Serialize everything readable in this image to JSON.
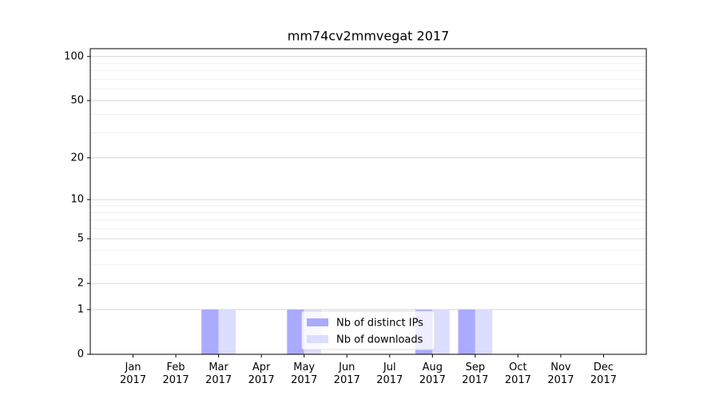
{
  "chart_data": {
    "type": "bar",
    "title": "mm74cv2mmvegat 2017",
    "categories": [
      "Jan 2017",
      "Feb 2017",
      "Mar 2017",
      "Apr 2017",
      "May 2017",
      "Jun 2017",
      "Jul 2017",
      "Aug 2017",
      "Sep 2017",
      "Oct 2017",
      "Nov 2017",
      "Dec 2017"
    ],
    "series": [
      {
        "name": "Nb of distinct IPs",
        "color": "#aaaaff",
        "values": [
          0,
          0,
          1,
          0,
          1,
          0,
          0,
          1,
          1,
          0,
          0,
          0
        ]
      },
      {
        "name": "Nb of downloads",
        "color": "#ddddff",
        "values": [
          0,
          0,
          1,
          0,
          1,
          0,
          0,
          1,
          1,
          0,
          0,
          0
        ]
      }
    ],
    "yscale": "log1p",
    "ylim": [
      0,
      113
    ],
    "yticks": [
      0,
      1,
      2,
      5,
      10,
      20,
      50,
      100
    ],
    "minor_yticks": [
      3,
      4,
      6,
      7,
      8,
      9,
      30,
      40,
      60,
      70,
      80,
      90
    ],
    "grid": true,
    "legend": "lower center"
  }
}
